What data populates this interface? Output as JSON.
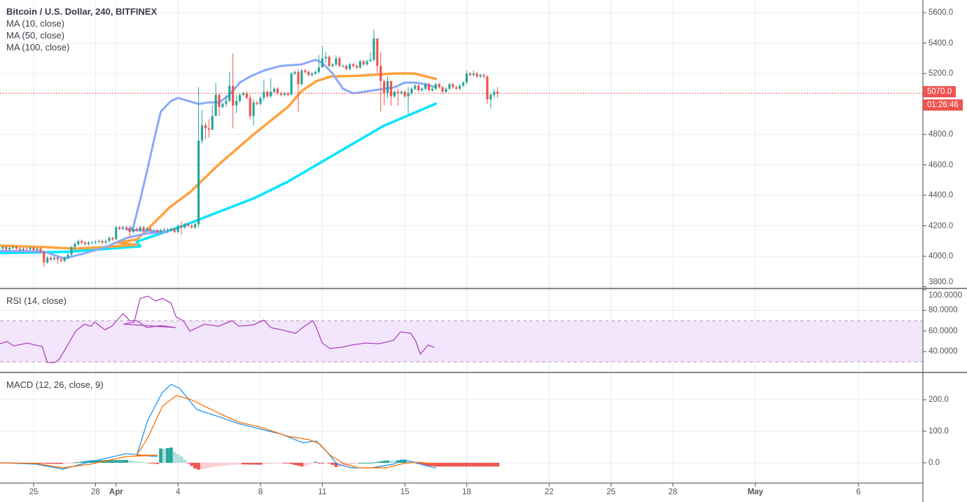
{
  "header": {
    "symbol_title": "Bitcoin / U.S. Dollar, 240, BITFINEX",
    "indicators": [
      "MA (10, close)",
      "MA (50, close)",
      "MA (100, close)"
    ]
  },
  "rsi_pane": {
    "title": "RSI (14, close)",
    "ticks": [
      "100.0000",
      "80.0000",
      "60.0000",
      "40.0000"
    ],
    "tick_values": [
      100,
      80,
      60,
      40
    ],
    "band": [
      30,
      70
    ]
  },
  "macd_pane": {
    "title": "MACD (12, 26, close, 9)",
    "ticks": [
      "200.0",
      "100.0",
      "0.0"
    ],
    "tick_values": [
      200,
      100,
      0
    ]
  },
  "price_axis": {
    "ticks": [
      "5600.0",
      "5400.0",
      "5200.0",
      "4800.0",
      "4600.0",
      "4400.0",
      "4200.0",
      "4000.0",
      "3800.0"
    ],
    "tick_values": [
      5600,
      5400,
      5200,
      4800,
      4600,
      4400,
      4200,
      4000,
      3800
    ],
    "last_price_label": "5070.0",
    "last_price": 5070,
    "countdown": "01:26:46"
  },
  "time_axis": {
    "labels": [
      {
        "text": "25",
        "date": "03-25 00:00"
      },
      {
        "text": "28",
        "date": "03-28 00:00"
      },
      {
        "text": "Apr",
        "date": "04-01 00:00",
        "bold": true
      },
      {
        "text": "4",
        "date": "04-04 00:00"
      },
      {
        "text": "8",
        "date": "04-08 00:00"
      },
      {
        "text": "11",
        "date": "04-11 00:00"
      },
      {
        "text": "15",
        "date": "04-15 00:00"
      },
      {
        "text": "18",
        "date": "04-18 00:00"
      },
      {
        "text": "22",
        "date": "04-22 00:00"
      },
      {
        "text": "25",
        "date": "04-25 00:00"
      },
      {
        "text": "28",
        "date": "04-28 00:00"
      },
      {
        "text": "May",
        "date": "05-01 00:00",
        "bold": true
      },
      {
        "text": "6",
        "date": "05-06 00:00"
      }
    ]
  },
  "colors": {
    "up": "#26a69a",
    "down": "#ef5350",
    "ma10": "#8aa9fb",
    "ma50": "#ffa23e",
    "ma100": "#00e5ff",
    "rsi": "#ab47bc",
    "rsi_band": "#f3e5fc",
    "macd": "#2196f3",
    "signal": "#ff6d00",
    "hist_up_strong": "#26a69a",
    "hist_up_weak": "#b2dfdb",
    "hist_down_strong": "#ef5350",
    "hist_down_weak": "#ffcdd2",
    "last_price": "#ef5350"
  },
  "chart_data": {
    "type": "candlestick",
    "interval_minutes": 240,
    "first_bar": "03-23 08:00",
    "candles": [
      4050,
      4060,
      4045,
      4055,
      4060,
      4050,
      4040,
      4050,
      4045,
      4055,
      4040,
      4050,
      4030,
      [
        3960,
        4035,
        3930
      ],
      3990,
      3980,
      3990,
      [
        3980,
        4000,
        3950
      ],
      3970,
      3990,
      4010,
      4060,
      [
        4080,
        4095,
        4040
      ],
      4100,
      4090,
      4080,
      4090,
      4090,
      4095,
      4100,
      4090,
      4100,
      4120,
      4110,
      [
        4190,
        4200,
        4110
      ],
      4180,
      4190,
      4180,
      [
        4160,
        4200,
        4120
      ],
      4180,
      4170,
      4190,
      4170,
      4180,
      4170,
      4170,
      4160,
      4170,
      4175,
      4170,
      4180,
      4160,
      4200,
      [
        4190,
        4230,
        4140
      ],
      4210,
      4200,
      4190,
      4210,
      [
        4760,
        5110,
        4190
      ],
      [
        4860,
        4960,
        4740
      ],
      [
        4840,
        4880,
        4770
      ],
      [
        4830,
        4900,
        4780
      ],
      [
        4920,
        4990,
        4860
      ],
      [
        5060,
        5140,
        4990
      ],
      [
        4980,
        5070,
        4920
      ],
      5000,
      [
        5020,
        5060,
        4980
      ],
      [
        5120,
        5210,
        5010
      ],
      [
        4990,
        5330,
        4840
      ],
      [
        5020,
        5060,
        4940
      ],
      5060,
      5070,
      5040,
      [
        4920,
        5060,
        4900
      ],
      [
        5010,
        5030,
        4860
      ],
      5000,
      5040,
      [
        5080,
        5160,
        5020
      ],
      5050,
      [
        5080,
        5170,
        5040
      ],
      5100,
      5070,
      5060,
      5070,
      5060,
      [
        5200,
        5210,
        5060
      ],
      5210,
      [
        5130,
        5230,
        4950
      ],
      5220,
      5210,
      5190,
      5200,
      5210,
      [
        5240,
        5320,
        5200
      ],
      [
        5300,
        5380,
        5240
      ],
      [
        5310,
        5340,
        5270
      ],
      [
        5250,
        5320,
        5240
      ],
      5260,
      [
        5300,
        5320,
        5250
      ],
      5250,
      5250,
      5230,
      5260,
      5250,
      5240,
      5280,
      5260,
      5280,
      [
        5290,
        5340,
        5280
      ],
      [
        5430,
        5490,
        5280
      ],
      [
        5250,
        5430,
        5200
      ],
      [
        5150,
        5340,
        4950
      ],
      [
        5070,
        5160,
        4990
      ],
      [
        5150,
        5180,
        5040
      ],
      [
        5050,
        5140,
        4990
      ],
      5080,
      [
        5070,
        5100,
        4990
      ],
      5080,
      5050,
      [
        5070,
        5110,
        4930
      ],
      5100,
      5120,
      5090,
      5100,
      5130,
      5090,
      5100,
      5130,
      5110,
      5080,
      5100,
      5130,
      5110,
      5100,
      5120,
      5140,
      [
        5200,
        5220,
        5130
      ],
      5190,
      [
        5200,
        5220,
        5180
      ],
      5180,
      5190,
      5180,
      [
        5030,
        5190,
        5000
      ],
      [
        5060,
        5070,
        4970
      ],
      [
        5080,
        5100,
        5040
      ],
      [
        5070,
        5110,
        5040
      ]
    ],
    "ma10": [
      [
        "03-23 08:00",
        4035
      ],
      [
        "03-25 12:00",
        4030
      ],
      [
        "03-26 12:00",
        3985
      ],
      [
        "03-27 12:00",
        4020
      ],
      [
        "03-28 12:00",
        4060
      ],
      [
        "03-29 12:00",
        4120
      ],
      [
        "03-30 12:00",
        4150
      ],
      [
        "03-31 12:00",
        4160
      ],
      [
        "04-01 12:00",
        4175
      ],
      [
        "04-01 20:00",
        4190
      ],
      [
        "04-02 04:00",
        4370
      ],
      [
        "04-02 12:00",
        4560
      ],
      [
        "04-02 20:00",
        4760
      ],
      [
        "04-03 04:00",
        4950
      ],
      [
        "04-03 16:00",
        5020
      ],
      [
        "04-04 00:00",
        5040
      ],
      [
        "04-04 12:00",
        5020
      ],
      [
        "04-05 00:00",
        5000
      ],
      [
        "04-05 12:00",
        5010
      ],
      [
        "04-06 00:00",
        5010
      ],
      [
        "04-06 12:00",
        5060
      ],
      [
        "04-07 00:00",
        5140
      ],
      [
        "04-07 12:00",
        5180
      ],
      [
        "04-08 04:00",
        5220
      ],
      [
        "04-09 00:00",
        5250
      ],
      [
        "04-10 00:00",
        5260
      ],
      [
        "04-10 16:00",
        5290
      ],
      [
        "04-11 00:00",
        5270
      ],
      [
        "04-11 12:00",
        5200
      ],
      [
        "04-12 00:00",
        5100
      ],
      [
        "04-12 12:00",
        5070
      ],
      [
        "04-13 00:00",
        5080
      ],
      [
        "04-14 00:00",
        5100
      ],
      [
        "04-14 12:00",
        5110
      ],
      [
        "04-15 00:00",
        5140
      ],
      [
        "04-15 12:00",
        5140
      ],
      [
        "04-16 00:00",
        5130
      ],
      [
        "04-16 12:00",
        5110
      ]
    ],
    "ma50": [
      [
        "03-23 08:00",
        4070
      ],
      [
        "03-25 12:00",
        4060
      ],
      [
        "03-27 00:00",
        4050
      ],
      [
        "03-28 12:00",
        4060
      ],
      [
        "03-30 00:00",
        4075
      ],
      [
        "04-01 00:00",
        4090
      ],
      [
        "04-02 00:00",
        4110
      ],
      [
        "04-02 13:00",
        4180
      ],
      [
        "04-03 14:00",
        4320
      ],
      [
        "04-04 14:00",
        4420
      ],
      [
        "04-05 23:00",
        4600
      ],
      [
        "04-07 16:00",
        4800
      ],
      [
        "04-09 08:00",
        4980
      ],
      [
        "04-10 00:00",
        5085
      ],
      [
        "04-10 17:00",
        5150
      ],
      [
        "04-11 10:00",
        5180
      ],
      [
        "04-12 18:00",
        5185
      ],
      [
        "04-14 10:00",
        5200
      ],
      [
        "04-15 11:00",
        5200
      ],
      [
        "04-16 12:00",
        5165
      ]
    ],
    "ma100": [
      [
        "03-23 08:00",
        4020
      ],
      [
        "03-26 18:00",
        4030
      ],
      [
        "03-30 04:00",
        4065
      ],
      [
        "04-02 00:00",
        4097
      ],
      [
        "04-02 13:00",
        4120
      ],
      [
        "04-04 06:00",
        4200
      ],
      [
        "04-05 23:00",
        4290
      ],
      [
        "04-07 16:00",
        4380
      ],
      [
        "04-09 08:00",
        4490
      ],
      [
        "04-11 01:00",
        4625
      ],
      [
        "04-12 18:00",
        4760
      ],
      [
        "04-13 23:00",
        4855
      ],
      [
        "04-16 12:00",
        5002
      ]
    ],
    "rsi": [
      [
        "03-23 09:00",
        47.6
      ],
      [
        "03-23 17:00",
        49.7
      ],
      [
        "03-24 01:00",
        45.6
      ],
      [
        "03-24 17:00",
        48.3
      ],
      [
        "03-25 02:00",
        46.3
      ],
      [
        "03-25 10:00",
        44.9
      ],
      [
        "03-25 16:00",
        29.3
      ],
      [
        "03-26 00:00",
        29.3
      ],
      [
        "03-26 06:00",
        32.7
      ],
      [
        "03-26 18:00",
        49.7
      ],
      [
        "03-27 01:00",
        59.9
      ],
      [
        "03-27 11:00",
        66.7
      ],
      [
        "03-27 19:00",
        64.6
      ],
      [
        "03-27 23:00",
        68.7
      ],
      [
        "03-28 11:00",
        61.2
      ],
      [
        "03-28 19:00",
        64.6
      ],
      [
        "03-29 08:00",
        76.9
      ],
      [
        "03-29 16:00",
        70.1
      ],
      [
        "03-30 00:00",
        70.1
      ],
      [
        "03-30 12:00",
        63.3
      ],
      [
        "03-31 04:00",
        65.3
      ],
      [
        "03-31 21:00",
        63.3
      ],
      [
        "04-01 09:00",
        66.7
      ],
      [
        "04-01 21:00",
        68.7
      ],
      [
        "04-02 04:00",
        91.8
      ],
      [
        "04-02 13:00",
        93.9
      ],
      [
        "04-02 22:00",
        89.1
      ],
      [
        "04-03 06:00",
        91.8
      ],
      [
        "04-03 16:00",
        87.1
      ],
      [
        "04-03 22:00",
        73.5
      ],
      [
        "04-04 06:00",
        70.1
      ],
      [
        "04-04 14:00",
        59.9
      ],
      [
        "04-05 07:00",
        66.7
      ],
      [
        "04-05 23:00",
        64.6
      ],
      [
        "04-06 15:00",
        70.1
      ],
      [
        "04-06 23:00",
        64.6
      ],
      [
        "04-07 16:00",
        66.0
      ],
      [
        "04-08 04:00",
        70.7
      ],
      [
        "04-08 12:00",
        63.3
      ],
      [
        "04-09 00:00",
        61.2
      ],
      [
        "04-09 17:00",
        57.8
      ],
      [
        "04-10 01:00",
        63.3
      ],
      [
        "04-10 13:00",
        70.1
      ],
      [
        "04-10 17:00",
        63.3
      ],
      [
        "04-11 00:00",
        48.3
      ],
      [
        "04-11 09:00",
        42.9
      ],
      [
        "04-11 22:00",
        44.2
      ],
      [
        "04-12 10:00",
        46.3
      ],
      [
        "04-13 02:00",
        48.3
      ],
      [
        "04-13 18:00",
        47.6
      ],
      [
        "04-14 11:00",
        51.0
      ],
      [
        "04-14 19:00",
        59.2
      ],
      [
        "04-15 07:00",
        57.8
      ],
      [
        "04-15 13:00",
        49.7
      ],
      [
        "04-15 18:00",
        37.4
      ],
      [
        "04-16 03:00",
        46.3
      ],
      [
        "04-16 10:00",
        44.2
      ]
    ],
    "macd": [
      [
        "03-23 09:00",
        0
      ],
      [
        "03-25 02:00",
        -4
      ],
      [
        "03-26 10:00",
        -20
      ],
      [
        "03-27 19:00",
        4
      ],
      [
        "03-29 12:00",
        29
      ],
      [
        "03-31 00:00",
        20
      ],
      [
        "04-02 00:00",
        24
      ],
      [
        "04-02 13:00",
        136
      ],
      [
        "04-03 06:00",
        224
      ],
      [
        "04-03 16:00",
        249
      ],
      [
        "04-04 02:00",
        236
      ],
      [
        "04-04 22:00",
        169
      ],
      [
        "04-05 23:00",
        147
      ],
      [
        "04-06 23:00",
        124
      ],
      [
        "04-08 00:00",
        107
      ],
      [
        "04-09 00:00",
        91
      ],
      [
        "04-10 01:00",
        64
      ],
      [
        "04-10 17:00",
        69
      ],
      [
        "04-11 05:00",
        36
      ],
      [
        "04-11 17:00",
        -4
      ],
      [
        "04-12 10:00",
        -16
      ],
      [
        "04-13 10:00",
        -16
      ],
      [
        "04-14 11:00",
        -4
      ],
      [
        "04-14 23:00",
        9
      ],
      [
        "04-15 11:00",
        2
      ],
      [
        "04-16 00:00",
        -9
      ],
      [
        "04-16 12:00",
        -16
      ]
    ],
    "signal": [
      [
        "03-23 09:00",
        0
      ],
      [
        "03-25 02:00",
        -2
      ],
      [
        "03-26 10:00",
        -16
      ],
      [
        "03-27 19:00",
        -4
      ],
      [
        "03-29 12:00",
        20
      ],
      [
        "03-31 00:00",
        24
      ],
      [
        "04-02 00:00",
        24
      ],
      [
        "04-02 13:00",
        80
      ],
      [
        "04-03 06:00",
        180
      ],
      [
        "04-03 22:00",
        213
      ],
      [
        "04-04 14:00",
        202
      ],
      [
        "04-05 23:00",
        158
      ],
      [
        "04-06 23:00",
        129
      ],
      [
        "04-08 00:00",
        113
      ],
      [
        "04-09 08:00",
        84
      ],
      [
        "04-10 09:00",
        73
      ],
      [
        "04-10 21:00",
        60
      ],
      [
        "04-11 09:00",
        24
      ],
      [
        "04-12 02:00",
        -4
      ],
      [
        "04-12 18:00",
        -16
      ],
      [
        "04-14 02:00",
        -16
      ],
      [
        "04-14 23:00",
        -2
      ],
      [
        "04-15 16:00",
        2
      ],
      [
        "04-16 12:00",
        -4
      ]
    ],
    "price_range": [
      3800,
      5600
    ],
    "rsi_range": [
      0,
      100
    ],
    "grid": true
  }
}
